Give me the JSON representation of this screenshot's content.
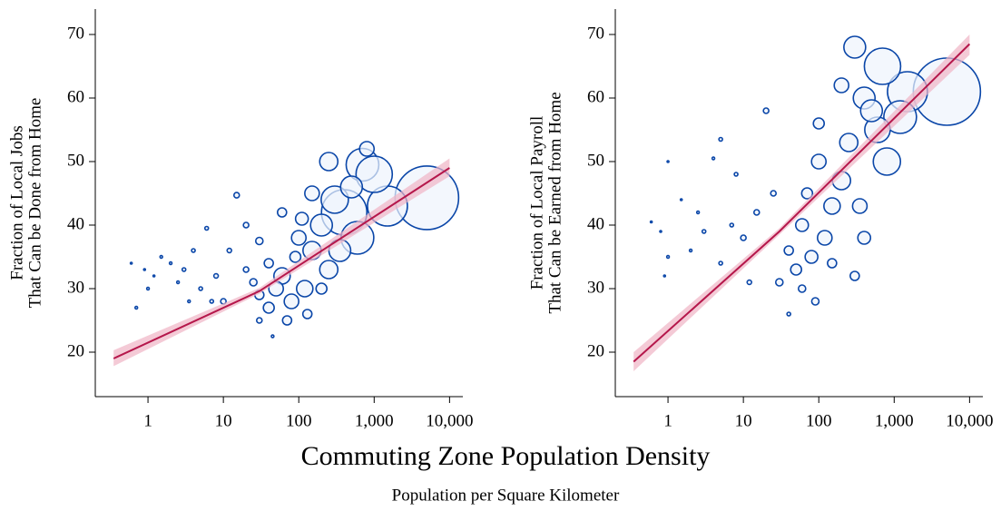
{
  "chart_data": [
    {
      "type": "scatter",
      "log_x": true,
      "ylabel": [
        "Fraction of Local Jobs",
        "That Can be Done from Home"
      ],
      "xlim": [
        0.2,
        15000
      ],
      "ylim": [
        13,
        74
      ],
      "xticks": [
        1,
        10,
        100,
        {
          "value": 1000,
          "label": "1,000"
        },
        {
          "value": 10000,
          "label": "10,000"
        }
      ],
      "yticks": [
        20,
        30,
        40,
        50,
        60,
        70
      ],
      "color": "#0a46a8",
      "fill": "#eef4fc",
      "x": [
        5000,
        1500,
        700,
        1000,
        400,
        600,
        300,
        200,
        150,
        250,
        120,
        80,
        60,
        50,
        40,
        30,
        100,
        150,
        500,
        350,
        70,
        90,
        200,
        40,
        25,
        15,
        20,
        10,
        8,
        5,
        3,
        2,
        1.5,
        1,
        0.7,
        0.6,
        1.2,
        4,
        6,
        12,
        30,
        20,
        45,
        60,
        110,
        130,
        250,
        800,
        30,
        2.5,
        7,
        0.9,
        3.5
      ],
      "values": [
        44.3,
        43,
        49.5,
        48,
        42,
        38,
        44,
        40,
        36,
        33,
        30,
        28,
        32,
        30,
        27,
        29,
        38,
        45,
        46,
        36,
        25,
        35,
        30,
        34,
        31,
        44.7,
        33,
        28,
        32,
        30,
        33,
        34,
        35,
        30,
        27,
        34,
        32,
        36,
        39.5,
        36,
        37.5,
        40,
        22.5,
        42,
        41,
        26,
        50,
        52,
        25,
        31,
        28,
        33,
        28
      ],
      "sizes": [
        1225,
        484,
        324,
        400,
        625,
        324,
        225,
        144,
        100,
        100,
        81,
        64,
        81,
        64,
        36,
        25,
        64,
        64,
        144,
        144,
        25,
        36,
        36,
        25,
        16,
        9,
        9,
        9,
        6,
        4,
        4,
        2,
        2,
        2,
        2,
        1,
        1,
        4,
        4,
        6,
        16,
        9,
        2,
        25,
        49,
        25,
        100,
        64,
        9,
        2,
        4,
        1,
        2
      ],
      "fit": {
        "color": "#b5174b",
        "band_color": "#f0b4c4",
        "x": [
          0.35,
          30,
          10000
        ],
        "values": [
          19,
          29.6,
          49
        ],
        "ci_lower": [
          17.8,
          29.2,
          47.7
        ],
        "ci_upper": [
          20.3,
          30.1,
          50.5
        ]
      }
    },
    {
      "type": "scatter",
      "log_x": true,
      "ylabel": [
        "Fraction of Local Payroll",
        "That Can be Earned from Home"
      ],
      "xlim": [
        0.2,
        15000
      ],
      "ylim": [
        13,
        74
      ],
      "xticks": [
        1,
        10,
        100,
        {
          "value": 1000,
          "label": "1,000"
        },
        {
          "value": 10000,
          "label": "10,000"
        }
      ],
      "yticks": [
        20,
        30,
        40,
        50,
        60,
        70
      ],
      "color": "#0a46a8",
      "fill": "#eef4fc",
      "x": [
        5000,
        1500,
        700,
        1200,
        300,
        800,
        600,
        400,
        500,
        250,
        200,
        150,
        100,
        120,
        80,
        60,
        50,
        40,
        70,
        30,
        200,
        350,
        100,
        20,
        25,
        15,
        10,
        7,
        5,
        5,
        3,
        2,
        1,
        1,
        0.8,
        0.6,
        1.5,
        4,
        8,
        12,
        40,
        60,
        150,
        300,
        400,
        90,
        0.9,
        2.5
      ],
      "values": [
        61,
        61,
        65,
        57,
        68,
        50,
        55,
        60,
        58,
        53,
        47,
        43,
        50,
        38,
        35,
        40,
        33,
        36,
        45,
        31,
        62,
        43,
        56,
        58,
        45,
        42,
        38,
        40,
        53.5,
        34,
        39,
        36,
        35,
        50,
        39,
        40.5,
        44,
        50.5,
        48,
        31,
        26,
        30,
        34,
        32,
        38,
        28,
        32,
        42
      ],
      "sizes": [
        1369,
        484,
        400,
        324,
        144,
        225,
        196,
        144,
        144,
        100,
        100,
        81,
        64,
        64,
        49,
        49,
        36,
        25,
        36,
        16,
        64,
        64,
        36,
        9,
        9,
        9,
        9,
        4,
        4,
        4,
        4,
        2,
        2,
        1,
        1,
        1,
        1,
        2,
        4,
        6,
        4,
        16,
        25,
        25,
        49,
        16,
        1,
        2
      ],
      "fit": {
        "color": "#b5174b",
        "band_color": "#f0b4c4",
        "x": [
          0.35,
          30,
          10000
        ],
        "values": [
          18.5,
          39,
          68.5
        ],
        "ci_lower": [
          17,
          38.5,
          66.8
        ],
        "ci_upper": [
          20,
          39.5,
          70
        ]
      }
    }
  ],
  "xlabel": "Commuting Zone Population Density",
  "xsublabel": "Population per Square Kilometer"
}
